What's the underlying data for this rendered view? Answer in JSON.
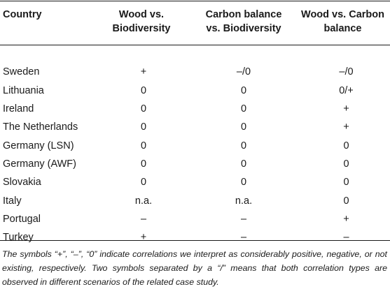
{
  "table": {
    "headers": [
      "Country",
      "Wood vs.\nBiodiversity",
      "Carbon balance\nvs. Biodiversity",
      "Wood vs. Carbon\nbalance"
    ],
    "rows": [
      {
        "country": "Sweden",
        "wood_bio": "+",
        "carbon_bio": "–/0",
        "wood_carbon": "–/0"
      },
      {
        "country": "Lithuania",
        "wood_bio": "0",
        "carbon_bio": "0",
        "wood_carbon": "0/+"
      },
      {
        "country": "Ireland",
        "wood_bio": "0",
        "carbon_bio": "0",
        "wood_carbon": "+"
      },
      {
        "country": "The Netherlands",
        "wood_bio": "0",
        "carbon_bio": "0",
        "wood_carbon": "+"
      },
      {
        "country": "Germany (LSN)",
        "wood_bio": "0",
        "carbon_bio": "0",
        "wood_carbon": "0"
      },
      {
        "country": "Germany (AWF)",
        "wood_bio": "0",
        "carbon_bio": "0",
        "wood_carbon": "0"
      },
      {
        "country": "Slovakia",
        "wood_bio": "0",
        "carbon_bio": "0",
        "wood_carbon": "0"
      },
      {
        "country": "Italy",
        "wood_bio": "n.a.",
        "carbon_bio": "n.a.",
        "wood_carbon": "0"
      },
      {
        "country": "Portugal",
        "wood_bio": "–",
        "carbon_bio": "–",
        "wood_carbon": "+"
      },
      {
        "country": "Turkey",
        "wood_bio": "+",
        "carbon_bio": "–",
        "wood_carbon": "–"
      }
    ]
  },
  "footnote": "The symbols “+”, “–”, “0” indicate correlations we interpret as considerably positive, negative, or not existing, respectively. Two symbols separated by a “/” means that both correlation types are observed in different scenarios of the related case study."
}
